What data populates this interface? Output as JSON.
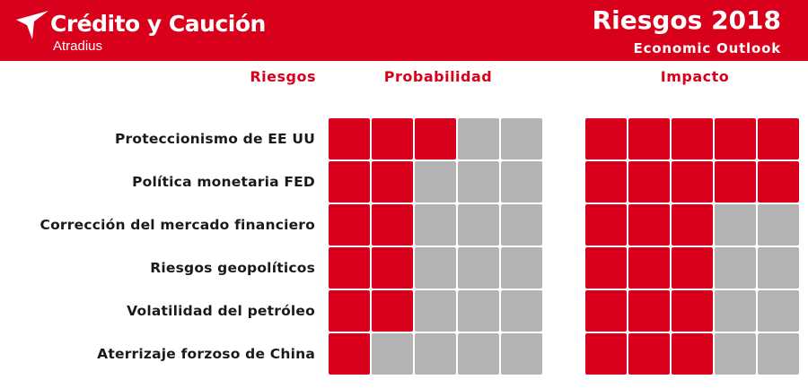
{
  "header": {
    "brand_name": "Crédito y Caución",
    "brand_sub": "Atradius",
    "logo_icon": "atradius-bird-logo",
    "title": "Riesgos 2018",
    "subtitle": "Economic Outlook"
  },
  "colors": {
    "accent": "#d9001b",
    "inactive": "#b3b3b3",
    "text": "#1a1a1a"
  },
  "chart_data": {
    "type": "table",
    "columns": {
      "risks": "Riesgos",
      "probability": "Probabilidad",
      "impact": "Impacto"
    },
    "scale_max": 5,
    "rows": [
      {
        "risk": "Proteccionismo de EE UU",
        "probability": 3,
        "impact": 5
      },
      {
        "risk": "Política monetaria FED",
        "probability": 2,
        "impact": 5
      },
      {
        "risk": "Corrección del  mercado financiero",
        "probability": 2,
        "impact": 3
      },
      {
        "risk": "Riesgos geopolíticos",
        "probability": 2,
        "impact": 3
      },
      {
        "risk": "Volatilidad del petróleo",
        "probability": 2,
        "impact": 3
      },
      {
        "risk": "Aterrizaje forzoso de China",
        "probability": 1,
        "impact": 3
      }
    ]
  }
}
